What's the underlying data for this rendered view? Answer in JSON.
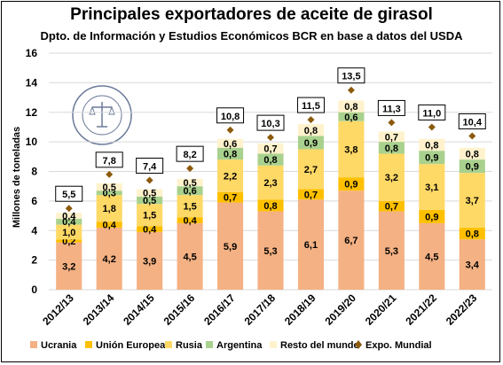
{
  "chart_data": {
    "type": "bar",
    "stacked": true,
    "title": "Principales exportadores de aceite de girasol",
    "subtitle": "Dpto. de Información y Estudios Económicos BCR en base a datos del USDA",
    "ylabel": "Millones de toneladas",
    "xlabel": "",
    "ylim": [
      0,
      16
    ],
    "yticks": [
      0,
      2,
      4,
      6,
      8,
      10,
      12,
      14,
      16
    ],
    "grid": true,
    "legend_position": "bottom",
    "categories": [
      "2012/13",
      "2013/14",
      "2014/15",
      "2015/16",
      "2016/17",
      "2017/18",
      "2018/19",
      "2019/20",
      "2020/21",
      "2021/22",
      "2022/23"
    ],
    "series": [
      {
        "name": "Ucrania",
        "color": "#f4b183",
        "values": [
          3.2,
          4.2,
          3.9,
          4.5,
          5.9,
          5.3,
          6.1,
          6.7,
          5.3,
          4.5,
          3.4
        ]
      },
      {
        "name": "Unión Europea",
        "color": "#ffc000",
        "values": [
          0.2,
          0.4,
          0.4,
          0.4,
          0.7,
          0.8,
          0.7,
          0.9,
          0.7,
          0.9,
          0.8
        ]
      },
      {
        "name": "Rusia",
        "color": "#ffd966",
        "values": [
          1.0,
          1.8,
          1.5,
          1.5,
          2.2,
          2.3,
          2.7,
          3.8,
          3.2,
          3.1,
          3.7
        ]
      },
      {
        "name": "Argentina",
        "color": "#a9d18e",
        "values": [
          0.4,
          0.3,
          0.5,
          0.6,
          0.8,
          0.8,
          0.9,
          0.6,
          0.8,
          0.9,
          0.9
        ]
      },
      {
        "name": "Resto del mundo",
        "color": "#fff2cc",
        "values": [
          0.4,
          0.5,
          0.5,
          0.5,
          0.6,
          0.7,
          0.8,
          0.8,
          0.7,
          0.8,
          0.8
        ]
      }
    ],
    "totals": {
      "name": "Expo. Mundial",
      "color": "#8b5a0b",
      "marker": "diamond",
      "values": [
        5.5,
        7.8,
        7.4,
        8.2,
        10.8,
        10.3,
        11.5,
        13.5,
        11.3,
        11.0,
        10.4
      ],
      "labels": [
        "5,5",
        "7,8",
        "7,4",
        "8,2",
        "10,8",
        "10,3",
        "11,5",
        "13,5",
        "11,3",
        "11,0",
        "10,4"
      ]
    },
    "segment_labels": [
      [
        "3,2",
        "0,2",
        "1,0",
        "0,4",
        "0,4"
      ],
      [
        "4,2",
        "0,4",
        "1,8",
        "0,3",
        "0,5"
      ],
      [
        "3,9",
        "0,4",
        "1,5",
        "0,5",
        "0,5"
      ],
      [
        "4,5",
        "0,4",
        "1,5",
        "0,6",
        "0,5"
      ],
      [
        "5,9",
        "0,7",
        "2,2",
        "0,8",
        "0,6"
      ],
      [
        "5,3",
        "0,8",
        "2,3",
        "0,8",
        "0,7"
      ],
      [
        "6,1",
        "0,7",
        "2,7",
        "0,9",
        "0,8"
      ],
      [
        "6,7",
        "0,9",
        "3,8",
        "0,6",
        "0,8"
      ],
      [
        "5,3",
        "0,7",
        "3,2",
        "0,8",
        "0,7"
      ],
      [
        "4,5",
        "0,9",
        "3,1",
        "0,9",
        "0,8"
      ],
      [
        "3,4",
        "0,8",
        "3,7",
        "0,9",
        "0,8"
      ]
    ]
  }
}
